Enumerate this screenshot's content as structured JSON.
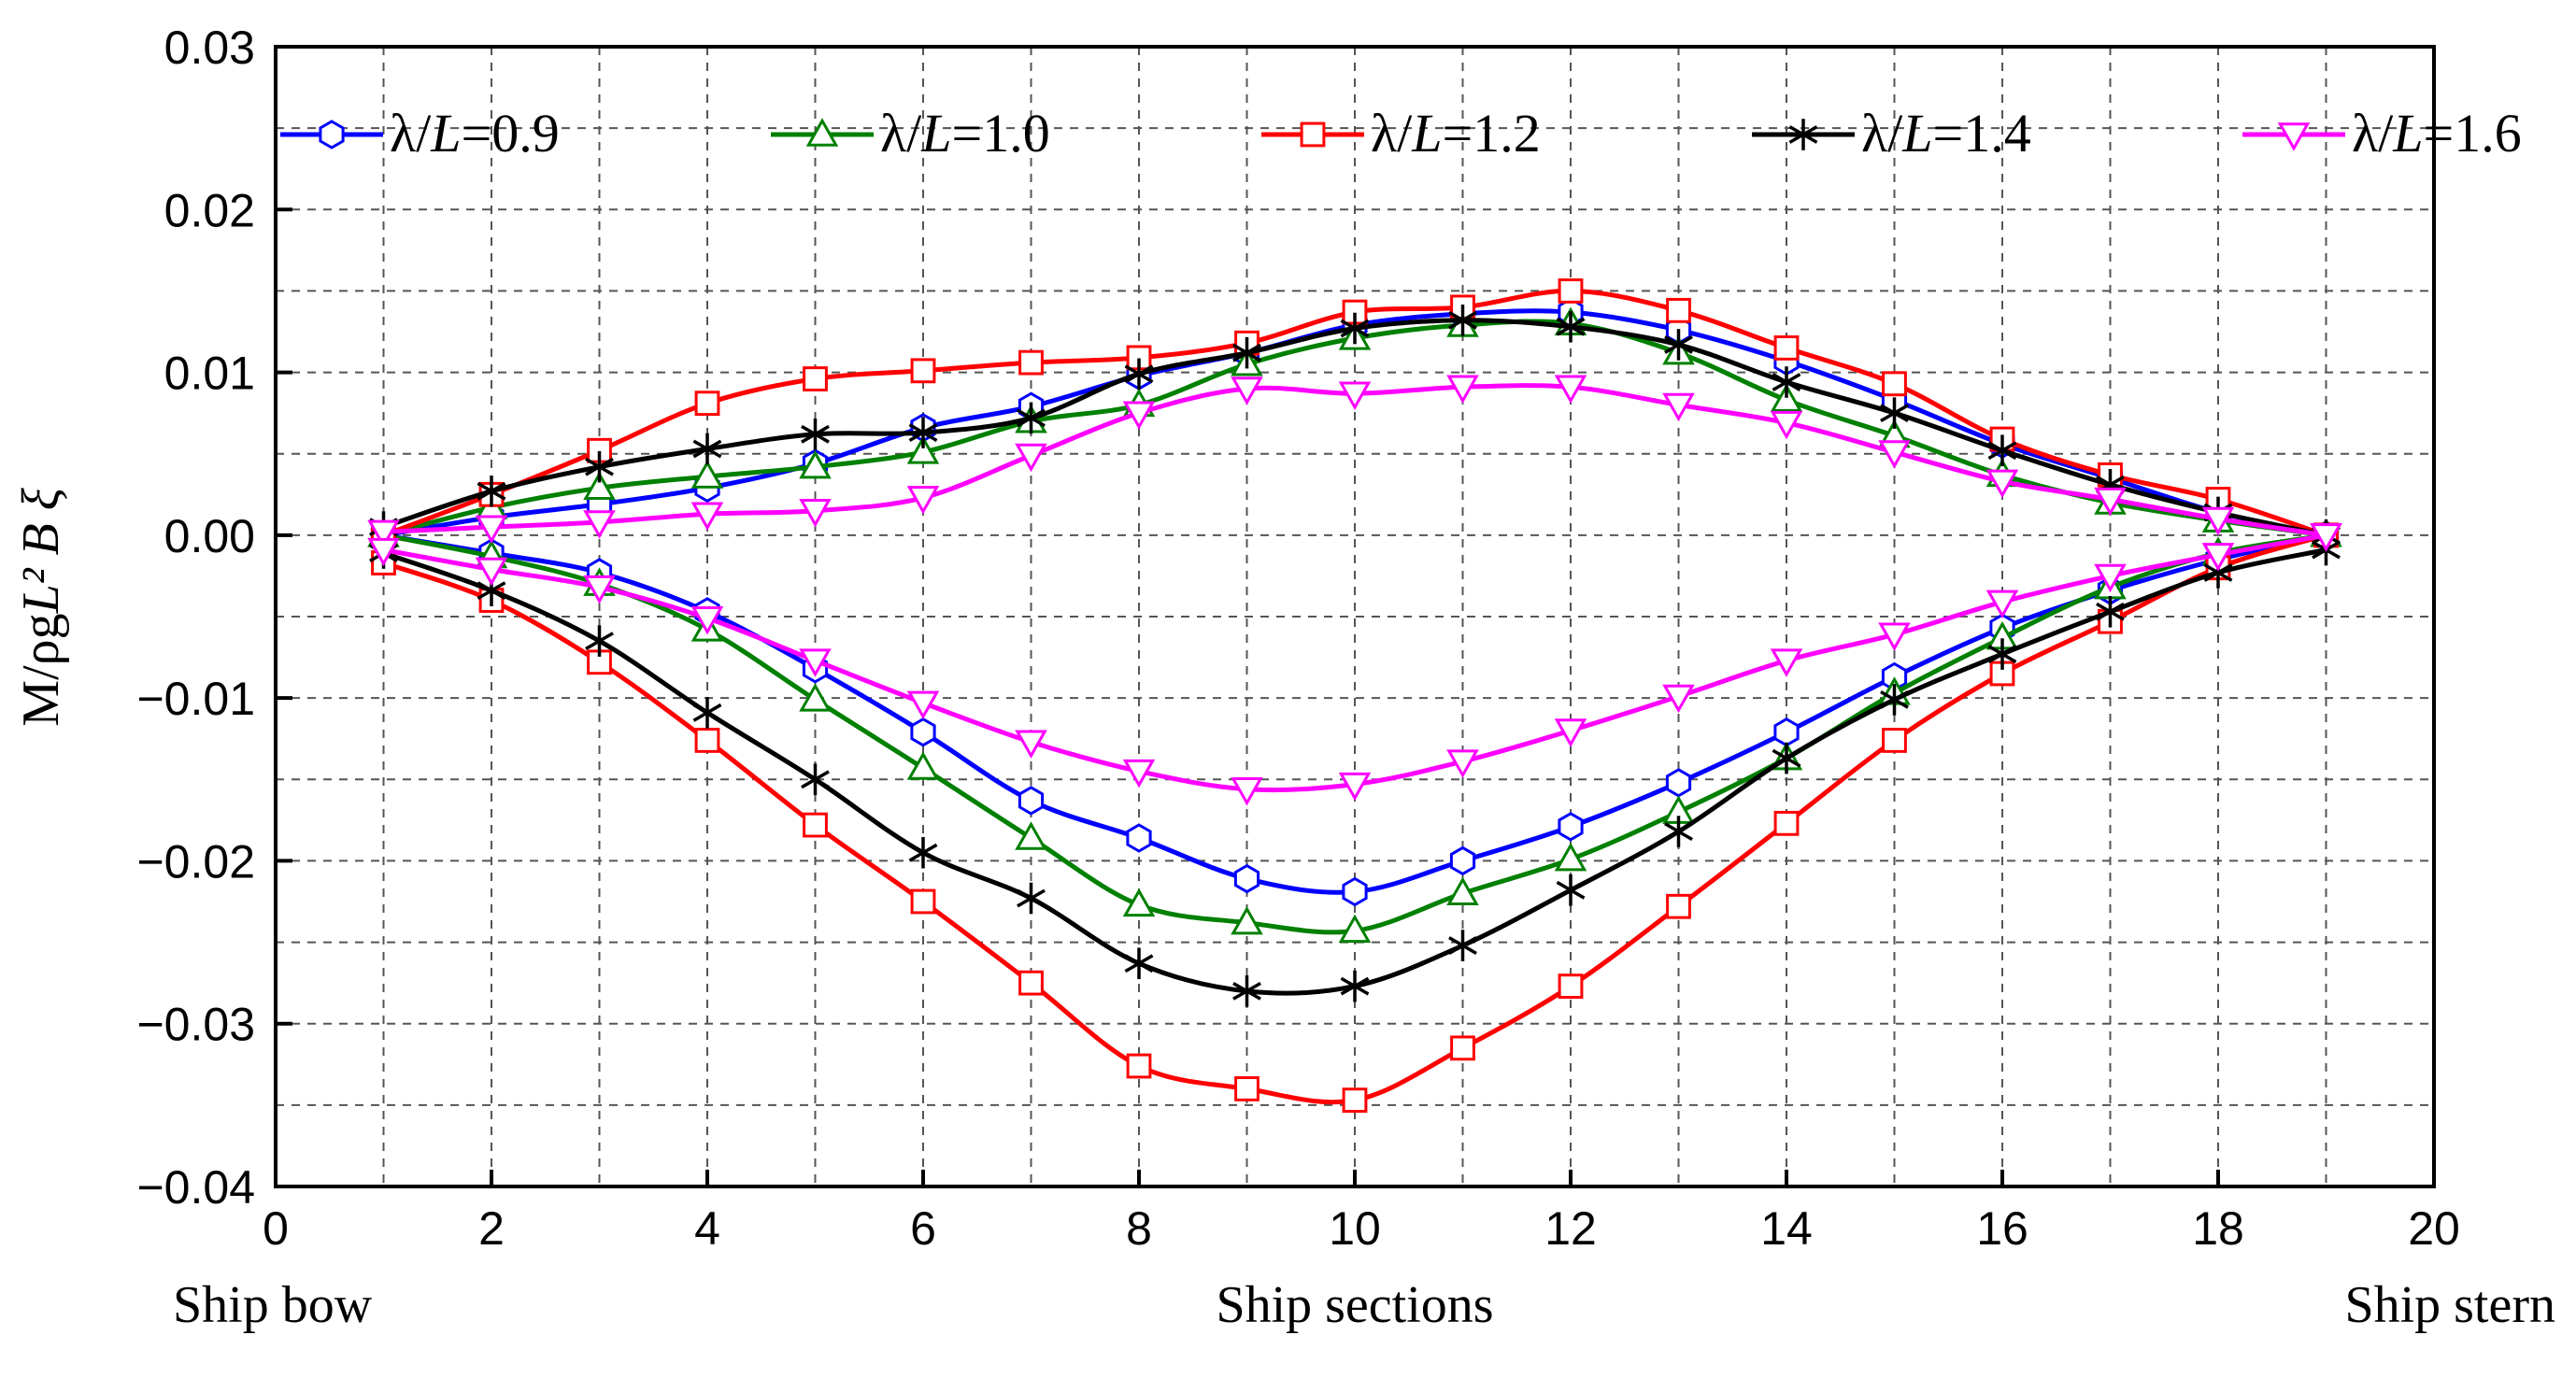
{
  "chart_data": {
    "type": "line",
    "xlabel": "Ship sections",
    "ylabel_prefix": "M/ρg",
    "ylabel_math": "L² B ξ",
    "corner_labels": {
      "left": "Ship bow",
      "right": "Ship stern"
    },
    "xlim": [
      0,
      20
    ],
    "ylim": [
      -0.04,
      0.03
    ],
    "xticks": [
      0,
      2,
      4,
      6,
      8,
      10,
      12,
      14,
      16,
      18,
      20
    ],
    "xtick_labels": [
      "0",
      "2",
      "4",
      "6",
      "8",
      "10",
      "12",
      "14",
      "16",
      "18",
      "20"
    ],
    "yticks": [
      -0.04,
      -0.03,
      -0.02,
      -0.01,
      0.0,
      0.01,
      0.02,
      0.03
    ],
    "ytick_labels": [
      "−0.04",
      "−0.03",
      "−0.02",
      "−0.01",
      "0.00",
      "0.01",
      "0.02",
      "0.03"
    ],
    "grid": true,
    "legend_position": "top",
    "x": [
      1,
      2,
      3,
      4,
      5,
      6,
      7,
      8,
      9,
      10,
      11,
      12,
      13,
      14,
      15,
      16,
      17,
      18,
      19
    ],
    "series": [
      {
        "name": "λ/L=0.9",
        "label_a": "λ/",
        "label_b": "L",
        "label_c": "=0.9",
        "color": "#0000ff",
        "marker": "hexagon",
        "upper": [
          0.0,
          0.0011,
          0.0019,
          0.0029,
          0.0044,
          0.0066,
          0.0079,
          0.0098,
          0.0112,
          0.0129,
          0.0136,
          0.0137,
          0.0126,
          0.0107,
          0.0083,
          0.0056,
          0.0035,
          0.0014,
          0.0
        ],
        "lower": [
          0.0,
          -0.0011,
          -0.0023,
          -0.0047,
          -0.0082,
          -0.0121,
          -0.0163,
          -0.0186,
          -0.0211,
          -0.0219,
          -0.02,
          -0.0179,
          -0.0152,
          -0.0121,
          -0.0087,
          -0.0057,
          -0.0034,
          -0.0015,
          0.0
        ]
      },
      {
        "name": "λ/L=1.0",
        "label_a": "λ/",
        "label_b": "L",
        "label_c": "=1.0",
        "color": "#008000",
        "marker": "triangle-up",
        "upper": [
          0.0,
          0.0017,
          0.0029,
          0.0036,
          0.0042,
          0.0051,
          0.007,
          0.008,
          0.0105,
          0.0121,
          0.0129,
          0.013,
          0.0112,
          0.0083,
          0.0061,
          0.0037,
          0.002,
          0.0009,
          0.0
        ],
        "lower": [
          0.0,
          -0.0013,
          -0.003,
          -0.0058,
          -0.0101,
          -0.0143,
          -0.0186,
          -0.0227,
          -0.0238,
          -0.0243,
          -0.022,
          -0.0199,
          -0.017,
          -0.0137,
          -0.0097,
          -0.0063,
          -0.0032,
          -0.0011,
          0.0
        ]
      },
      {
        "name": "λ/L=1.2",
        "label_a": "λ/",
        "label_b": "L",
        "label_c": "=1.2",
        "color": "#ff0000",
        "marker": "square",
        "upper": [
          0.0,
          0.0025,
          0.0052,
          0.0081,
          0.0096,
          0.0101,
          0.0106,
          0.0109,
          0.0118,
          0.0137,
          0.014,
          0.015,
          0.0138,
          0.0115,
          0.0093,
          0.0059,
          0.0037,
          0.0022,
          0.0
        ],
        "lower": [
          -0.0017,
          -0.004,
          -0.0078,
          -0.0126,
          -0.0178,
          -0.0225,
          -0.0275,
          -0.0326,
          -0.034,
          -0.0347,
          -0.0315,
          -0.0277,
          -0.0228,
          -0.0177,
          -0.0126,
          -0.0085,
          -0.0053,
          -0.002,
          0.0
        ]
      },
      {
        "name": "λ/L=1.4",
        "label_a": "λ/",
        "label_b": "L",
        "label_c": "=1.4",
        "color": "#000000",
        "marker": "asterisk",
        "upper": [
          0.0005,
          0.0027,
          0.0042,
          0.0053,
          0.0062,
          0.0063,
          0.0072,
          0.0099,
          0.0112,
          0.0127,
          0.0132,
          0.0128,
          0.0117,
          0.0094,
          0.0075,
          0.0052,
          0.0031,
          0.0014,
          0.0
        ],
        "lower": [
          -0.0011,
          -0.0034,
          -0.0065,
          -0.0109,
          -0.015,
          -0.0195,
          -0.0223,
          -0.0263,
          -0.028,
          -0.0277,
          -0.0252,
          -0.0218,
          -0.0182,
          -0.0137,
          -0.0101,
          -0.0073,
          -0.0047,
          -0.0023,
          -0.0009
        ]
      },
      {
        "name": "λ/L=1.6",
        "label_a": "λ/",
        "label_b": "L",
        "label_c": "=1.6",
        "color": "#ff00ff",
        "marker": "triangle-down",
        "upper": [
          0.0002,
          0.0005,
          0.0008,
          0.0013,
          0.0015,
          0.0023,
          0.0049,
          0.0075,
          0.009,
          0.0087,
          0.0091,
          0.0091,
          0.008,
          0.0069,
          0.0051,
          0.0033,
          0.0022,
          0.001,
          0.0
        ],
        "lower": [
          -0.0009,
          -0.0021,
          -0.0032,
          -0.0051,
          -0.0077,
          -0.0103,
          -0.0127,
          -0.0145,
          -0.0156,
          -0.0153,
          -0.0139,
          -0.012,
          -0.0099,
          -0.0077,
          -0.0061,
          -0.0041,
          -0.0025,
          -0.0012,
          0.0
        ]
      }
    ]
  }
}
